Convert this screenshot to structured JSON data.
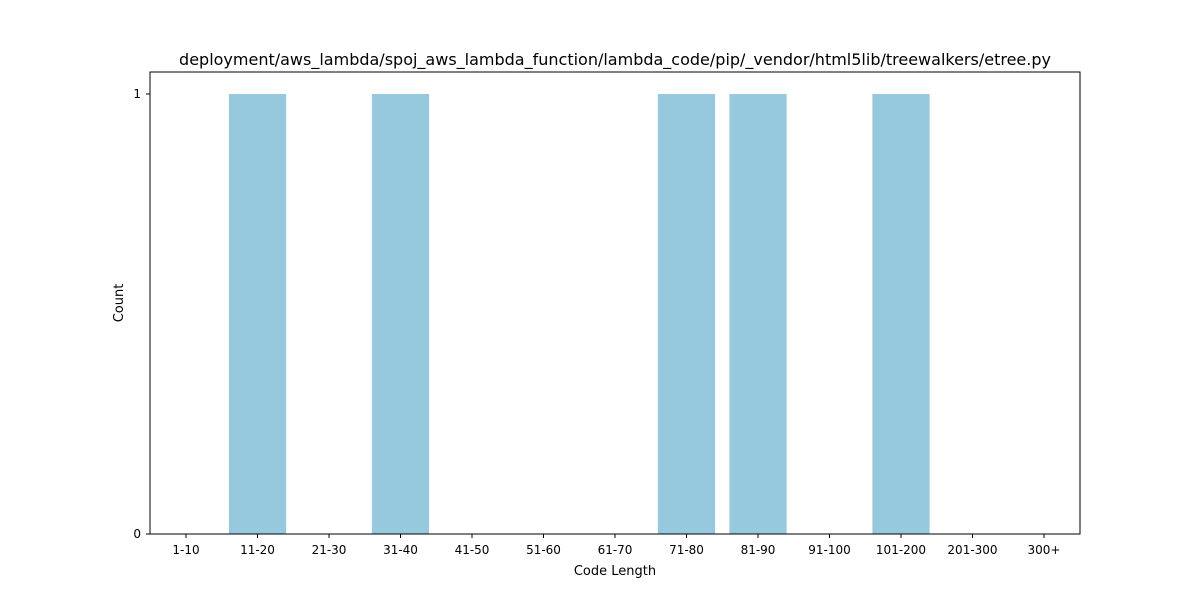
{
  "chart_data": {
    "type": "bar",
    "title": "deployment/aws_lambda/spoj_aws_lambda_function/lambda_code/pip/_vendor/html5lib/treewalkers/etree.py",
    "xlabel": "Code Length",
    "ylabel": "Count",
    "categories": [
      "1-10",
      "11-20",
      "21-30",
      "31-40",
      "41-50",
      "51-60",
      "61-70",
      "71-80",
      "81-90",
      "91-100",
      "101-200",
      "201-300",
      "300+"
    ],
    "values": [
      0,
      1,
      0,
      1,
      0,
      0,
      0,
      1,
      1,
      0,
      1,
      0,
      0
    ],
    "ylim": [
      0,
      1
    ],
    "yticks": [
      0,
      1
    ],
    "grid": false,
    "bar_color": "#96c9dd"
  }
}
